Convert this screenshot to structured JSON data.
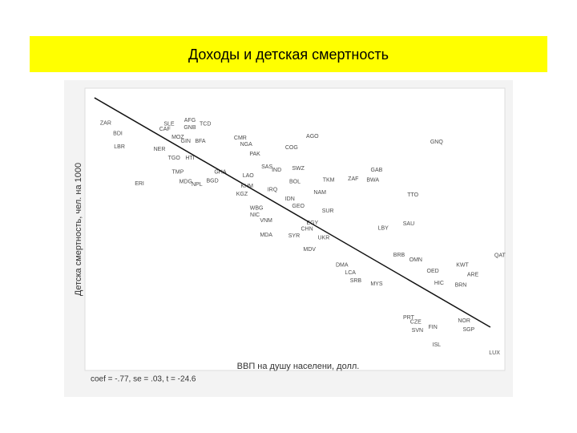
{
  "chart_data": {
    "type": "scatter",
    "title": "Доходы и детская смертность",
    "y_label": "Детска смертность, чел. на 1000",
    "x_label": "ВВП на душу населени, долл.",
    "annotation": "coef = -.77, se = .03, t = -24.6",
    "xlim": [
      0,
      100
    ],
    "ylim": [
      0,
      100
    ],
    "color": "#4a4a4a",
    "line_color": "#111111",
    "fit_line": {
      "x": [
        1.9,
        96.9
      ],
      "y": [
        97.1,
        13.7
      ]
    },
    "series": [
      {
        "name": null,
        "labels": [
          "ZAR",
          "SLE",
          "AFG",
          "CAF",
          "GNB",
          "TCD",
          "BDI",
          "MOZ",
          "GIN",
          "BFA",
          "LBR",
          "NER",
          "ERI",
          "TMP",
          "MDG",
          "NPL",
          "BGD",
          "HTI",
          "TGO",
          "CMR",
          "NGA",
          "PAK",
          "AGO",
          "COG",
          "GNQ",
          "GHA",
          "LAO",
          "KHM",
          "KGZ",
          "SAS",
          "IND",
          "SWZ",
          "TKM",
          "ZAF",
          "BWA",
          "GAB",
          "BOL",
          "IDN",
          "NAM",
          "IRQ",
          "TTO",
          "WBG",
          "NIC",
          "VNM",
          "MDA",
          "GEO",
          "SUR",
          "CHN",
          "EGY",
          "SAU",
          "SYR",
          "UKR",
          "MDV",
          "LBY",
          "BRB",
          "QAT",
          "OMN",
          "KWT",
          "ARE",
          "BRN",
          "SRB",
          "MYS",
          "OED",
          "HIC",
          "NOR",
          "SGP",
          "SVN",
          "FIN",
          "ISL",
          "LUX",
          "PRT",
          "CZE",
          "DMA",
          "LCA"
        ],
        "x": [
          4.6,
          19.8,
          24.8,
          18.8,
          24.8,
          28.5,
          7.5,
          21.9,
          23.8,
          27.3,
          7.9,
          17.5,
          12.7,
          21.9,
          23.8,
          26.5,
          30.2,
          24.8,
          21.0,
          36.9,
          38.3,
          40.4,
          54.2,
          49.2,
          84.0,
          32.1,
          38.8,
          38.5,
          37.3,
          43.3,
          45.6,
          50.8,
          58.1,
          64.0,
          68.7,
          69.6,
          50.0,
          48.8,
          56.0,
          44.6,
          78.3,
          40.8,
          40.4,
          43.1,
          43.1,
          50.8,
          57.9,
          52.9,
          54.2,
          77.3,
          49.8,
          56.9,
          53.5,
          71.2,
          75.0,
          99.2,
          79.0,
          90.2,
          92.7,
          89.8,
          64.6,
          69.6,
          83.1,
          84.6,
          90.6,
          91.7,
          79.4,
          83.1,
          84.0,
          97.9,
          77.3,
          79.0,
          61.3,
          63.3
        ],
        "values": [
          87.8,
          87.5,
          88.9,
          85.7,
          86.3,
          87.5,
          84.0,
          82.8,
          81.3,
          81.3,
          79.3,
          78.4,
          65.9,
          70.0,
          66.5,
          65.6,
          66.8,
          75.2,
          75.2,
          82.5,
          80.2,
          76.7,
          83.1,
          79.0,
          81.0,
          70.0,
          68.8,
          65.0,
          62.1,
          72.0,
          70.8,
          71.4,
          67.1,
          67.6,
          67.1,
          70.8,
          66.5,
          60.3,
          62.7,
          63.6,
          61.8,
          56.9,
          54.5,
          52.5,
          47.2,
          57.7,
          56.0,
          49.3,
          51.6,
          51.3,
          46.9,
          46.1,
          42.0,
          49.6,
          39.9,
          39.7,
          38.2,
          36.2,
          32.7,
          28.9,
          30.6,
          29.4,
          34.1,
          29.7,
          16.0,
          12.8,
          12.5,
          13.7,
          7.3,
          4.4,
          17.2,
          15.5,
          36.2,
          33.5
        ]
      }
    ]
  }
}
